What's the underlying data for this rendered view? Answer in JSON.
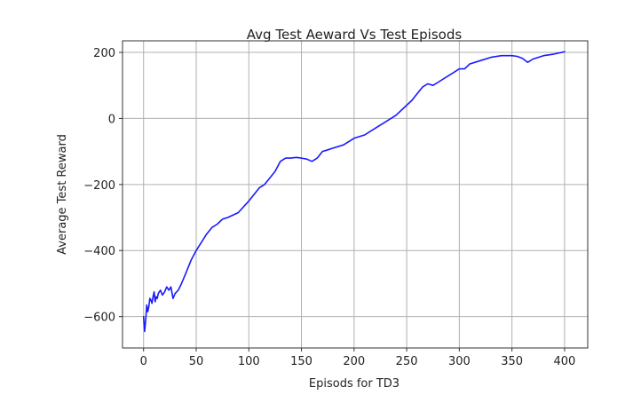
{
  "chart_data": {
    "type": "line",
    "title": "Avg Test Aeward Vs Test Episods",
    "xlabel": "Episods for TD3",
    "ylabel": "Average Test Reward",
    "xlim": [
      -20,
      422
    ],
    "ylim": [
      -695,
      235
    ],
    "x_ticks": [
      0,
      50,
      100,
      150,
      200,
      250,
      300,
      350,
      400
    ],
    "y_ticks": [
      -600,
      -400,
      -200,
      0,
      200
    ],
    "grid": true,
    "legend": "none",
    "series": [
      {
        "color": "#1a1aff",
        "x": [
          0,
          1,
          2,
          3,
          4,
          5,
          6,
          7,
          8,
          9,
          10,
          11,
          12,
          13,
          14,
          16,
          18,
          20,
          22,
          24,
          26,
          28,
          30,
          33,
          36,
          40,
          45,
          50,
          55,
          60,
          65,
          70,
          75,
          80,
          90,
          100,
          110,
          115,
          120,
          125,
          130,
          135,
          140,
          145,
          150,
          155,
          160,
          165,
          170,
          175,
          180,
          190,
          200,
          205,
          210,
          220,
          230,
          240,
          250,
          255,
          260,
          265,
          270,
          275,
          280,
          290,
          300,
          305,
          310,
          320,
          330,
          340,
          350,
          355,
          360,
          365,
          370,
          380,
          390,
          400
        ],
        "y": [
          -600,
          -645,
          -610,
          -565,
          -585,
          -570,
          -545,
          -550,
          -560,
          -540,
          -525,
          -555,
          -540,
          -545,
          -530,
          -520,
          -535,
          -525,
          -510,
          -520,
          -510,
          -545,
          -530,
          -520,
          -500,
          -470,
          -430,
          -400,
          -375,
          -350,
          -330,
          -320,
          -305,
          -300,
          -285,
          -250,
          -210,
          -200,
          -180,
          -160,
          -130,
          -120,
          -120,
          -118,
          -120,
          -123,
          -130,
          -120,
          -100,
          -95,
          -90,
          -80,
          -60,
          -55,
          -50,
          -30,
          -10,
          10,
          40,
          55,
          75,
          95,
          105,
          100,
          110,
          130,
          150,
          150,
          165,
          175,
          185,
          190,
          190,
          188,
          182,
          170,
          180,
          190,
          195,
          202
        ]
      }
    ]
  }
}
